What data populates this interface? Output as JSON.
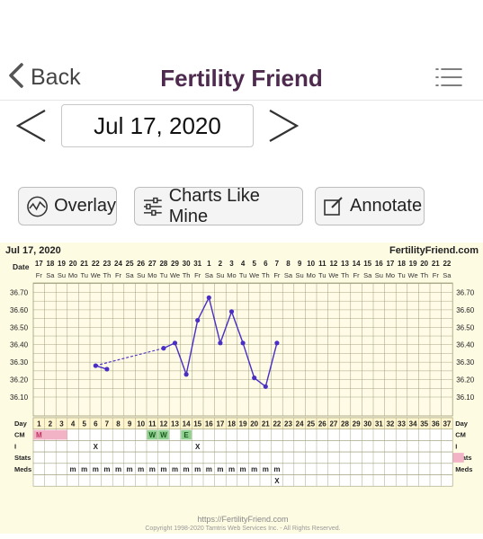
{
  "nav": {
    "back_label": "Back",
    "title": "Fertility Friend"
  },
  "date_selector": {
    "value": "Jul 17, 2020"
  },
  "toolbar": {
    "overlay_label": "Overlay",
    "charts_like_mine_label": "Charts Like Mine",
    "annotate_label": "Annotate"
  },
  "chart_data": {
    "type": "line",
    "header_date": "Jul 17, 2020",
    "brand": "FertilityFriend.com",
    "date_label": "Date",
    "dates": [
      "17",
      "18",
      "19",
      "20",
      "21",
      "22",
      "23",
      "24",
      "25",
      "26",
      "27",
      "28",
      "29",
      "30",
      "31",
      "1",
      "2",
      "3",
      "4",
      "5",
      "6",
      "7",
      "8",
      "9",
      "10",
      "11",
      "12",
      "13",
      "14",
      "15",
      "16",
      "17",
      "18",
      "19",
      "20",
      "21",
      "22"
    ],
    "weekdays": [
      "Fr",
      "Sa",
      "Su",
      "Mo",
      "Tu",
      "We",
      "Th",
      "Fr",
      "Sa",
      "Su",
      "Mo",
      "Tu",
      "We",
      "Th",
      "Fr",
      "Sa",
      "Su",
      "Mo",
      "Tu",
      "We",
      "Th",
      "Fr",
      "Sa",
      "Su",
      "Mo",
      "Tu",
      "We",
      "Th",
      "Fr",
      "Sa",
      "Su",
      "Mo",
      "Tu",
      "We",
      "Th",
      "Fr",
      "Sa"
    ],
    "y_ticks": [
      "36.70",
      "36.60",
      "36.50",
      "36.40",
      "36.30",
      "36.20",
      "36.10"
    ],
    "ylim": [
      36.05,
      36.75
    ],
    "temps": [
      null,
      null,
      null,
      null,
      null,
      36.28,
      36.26,
      null,
      null,
      null,
      null,
      36.38,
      36.41,
      36.23,
      36.54,
      36.67,
      36.41,
      36.59,
      36.41,
      36.21,
      36.16,
      36.41,
      null,
      null,
      null,
      null,
      null,
      null,
      null,
      null,
      null,
      null,
      null,
      null,
      null,
      null,
      null
    ],
    "dashed_gap": [
      7,
      12
    ],
    "rows": {
      "day_label": "Day",
      "cm_label": "CM",
      "i_label": "I",
      "stats_label": "Stats",
      "meds_label": "Meds",
      "days": [
        "1",
        "2",
        "3",
        "4",
        "5",
        "6",
        "7",
        "8",
        "9",
        "10",
        "11",
        "12",
        "13",
        "14",
        "15",
        "16",
        "17",
        "18",
        "19",
        "20",
        "21",
        "22",
        "23",
        "24",
        "25",
        "26",
        "27",
        "28",
        "29",
        "30",
        "31",
        "32",
        "33",
        "34",
        "35",
        "36",
        "37"
      ],
      "cm": {
        "1": "M",
        "11": "W",
        "12": "W",
        "14": "E"
      },
      "i_marks": {
        "6": "X",
        "15": "X"
      },
      "meds": {
        "4": "m",
        "5": "m",
        "6": "m",
        "7": "m",
        "8": "m",
        "9": "m",
        "10": "m",
        "11": "m",
        "12": "m",
        "13": "m",
        "14": "m",
        "15": "m",
        "16": "m",
        "17": "m",
        "18": "m",
        "19": "m",
        "20": "m",
        "21": "m",
        "22": "m"
      },
      "extra_marks": {
        "22": "X"
      }
    },
    "colors": {
      "line": "#4a2fc4",
      "grid": "#9d9d7a",
      "menses": "#f2b3c6",
      "fertile": "#8fcf8f",
      "bg": "#fefbe3"
    }
  },
  "footer": {
    "url": "https://FertilityFriend.com",
    "copyright": "Copyright 1998-2020 Tamtris Web Services Inc. - All Rights Reserved."
  }
}
